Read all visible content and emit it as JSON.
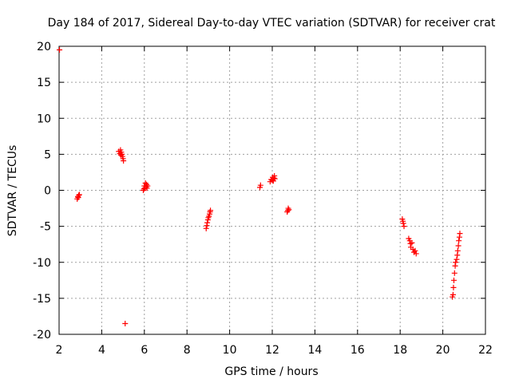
{
  "chart_data": {
    "type": "scatter",
    "title": "Day 184 of 2017, Sidereal Day-to-day VTEC variation (SDTVAR) for receiver crat",
    "xlabel": "GPS time / hours",
    "ylabel": "SDTVAR / TECUs",
    "xlim": [
      2,
      22
    ],
    "ylim": [
      -20,
      20
    ],
    "xticks": [
      2,
      4,
      6,
      8,
      10,
      12,
      14,
      16,
      18,
      20,
      22
    ],
    "yticks": [
      -20,
      -15,
      -10,
      -5,
      0,
      5,
      10,
      15,
      20
    ],
    "xtick_labels": [
      "2",
      "4",
      "6",
      "8",
      "10",
      "12",
      "14",
      "16",
      "18",
      "20",
      "22"
    ],
    "ytick_labels": [
      "-20",
      "-15",
      "-10",
      "-5",
      "0",
      "5",
      "10",
      "15",
      "20"
    ],
    "grid": true,
    "marker": "+",
    "color": "#ff0000",
    "series": [
      {
        "name": "SDTVAR",
        "points": [
          [
            2.02,
            19.5
          ],
          [
            2.85,
            -1.2
          ],
          [
            2.88,
            -0.9
          ],
          [
            2.9,
            -1.0
          ],
          [
            2.92,
            -0.7
          ],
          [
            2.95,
            -0.6
          ],
          [
            4.8,
            5.4
          ],
          [
            4.85,
            5.1
          ],
          [
            4.88,
            5.6
          ],
          [
            4.9,
            4.9
          ],
          [
            4.92,
            5.3
          ],
          [
            4.95,
            5.0
          ],
          [
            4.97,
            4.7
          ],
          [
            5.0,
            4.4
          ],
          [
            5.02,
            4.1
          ],
          [
            5.1,
            -18.5
          ],
          [
            5.95,
            0.0
          ],
          [
            5.98,
            0.2
          ],
          [
            6.0,
            0.6
          ],
          [
            6.02,
            0.3
          ],
          [
            6.05,
            1.0
          ],
          [
            6.08,
            0.5
          ],
          [
            6.1,
            0.8
          ],
          [
            6.12,
            0.3
          ],
          [
            6.15,
            0.6
          ],
          [
            8.9,
            -5.3
          ],
          [
            8.93,
            -4.9
          ],
          [
            8.95,
            -4.5
          ],
          [
            8.98,
            -4.1
          ],
          [
            9.0,
            -3.8
          ],
          [
            9.03,
            -3.6
          ],
          [
            9.06,
            -3.3
          ],
          [
            9.08,
            -3.0
          ],
          [
            9.1,
            -2.8
          ],
          [
            11.42,
            0.4
          ],
          [
            11.45,
            0.7
          ],
          [
            11.9,
            1.2
          ],
          [
            11.95,
            1.5
          ],
          [
            12.0,
            1.4
          ],
          [
            12.02,
            1.8
          ],
          [
            12.05,
            1.3
          ],
          [
            12.08,
            1.7
          ],
          [
            12.1,
            2.0
          ],
          [
            12.12,
            1.6
          ],
          [
            12.7,
            -3.0
          ],
          [
            12.73,
            -2.8
          ],
          [
            12.75,
            -2.5
          ],
          [
            12.78,
            -2.7
          ],
          [
            18.1,
            -4.0
          ],
          [
            18.13,
            -4.3
          ],
          [
            18.15,
            -4.6
          ],
          [
            18.18,
            -5.0
          ],
          [
            18.4,
            -6.7
          ],
          [
            18.45,
            -7.0
          ],
          [
            18.48,
            -7.4
          ],
          [
            18.5,
            -7.9
          ],
          [
            18.55,
            -7.3
          ],
          [
            18.6,
            -8.2
          ],
          [
            18.65,
            -8.6
          ],
          [
            18.7,
            -8.4
          ],
          [
            18.75,
            -8.8
          ],
          [
            20.45,
            -14.8
          ],
          [
            20.48,
            -14.5
          ],
          [
            20.5,
            -13.5
          ],
          [
            20.52,
            -12.5
          ],
          [
            20.55,
            -11.5
          ],
          [
            20.58,
            -10.5
          ],
          [
            20.6,
            -10.0
          ],
          [
            20.65,
            -9.6
          ],
          [
            20.68,
            -9.0
          ],
          [
            20.7,
            -8.4
          ],
          [
            20.73,
            -7.7
          ],
          [
            20.75,
            -7.0
          ],
          [
            20.78,
            -6.5
          ],
          [
            20.8,
            -6.0
          ]
        ]
      }
    ]
  }
}
